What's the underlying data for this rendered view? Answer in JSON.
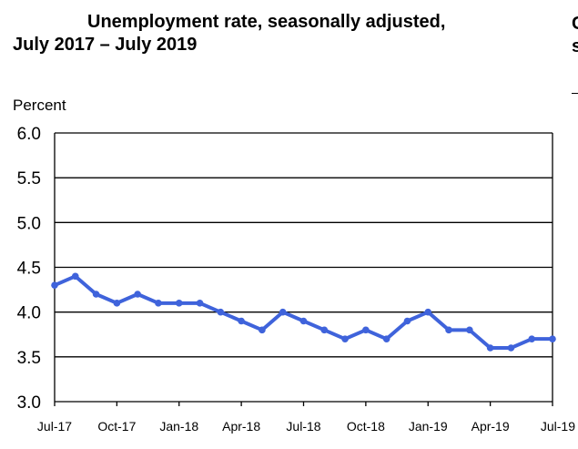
{
  "chart_data": {
    "type": "line",
    "title_line_1": "Unemployment rate, seasonally adjusted,",
    "title_line_2": "July 2017 – July 2019",
    "ylabel": "Percent",
    "xlabel": "",
    "ylim": [
      3.0,
      6.0
    ],
    "yticks": [
      "3.0",
      "3.5",
      "4.0",
      "4.5",
      "5.0",
      "5.5",
      "6.0"
    ],
    "grid": true,
    "legend": "none",
    "x": [
      "Jul-17",
      "Aug-17",
      "Sep-17",
      "Oct-17",
      "Nov-17",
      "Dec-17",
      "Jan-18",
      "Feb-18",
      "Mar-18",
      "Apr-18",
      "May-18",
      "Jun-18",
      "Jul-18",
      "Aug-18",
      "Sep-18",
      "Oct-18",
      "Nov-18",
      "Dec-18",
      "Jan-19",
      "Feb-19",
      "Mar-19",
      "Apr-19",
      "May-19",
      "Jun-19",
      "Jul-19"
    ],
    "xtick_labels": [
      "Jul-17",
      "Oct-17",
      "Jan-18",
      "Apr-18",
      "Jul-18",
      "Oct-18",
      "Jan-19",
      "Apr-19",
      "Jul-19"
    ],
    "series": [
      {
        "values": [
          4.3,
          4.4,
          4.2,
          4.1,
          4.2,
          4.1,
          4.1,
          4.1,
          4.0,
          3.9,
          3.8,
          4.0,
          3.9,
          3.8,
          3.7,
          3.8,
          3.7,
          3.9,
          4.0,
          3.8,
          3.8,
          3.6,
          3.6,
          3.7,
          3.7
        ]
      }
    ],
    "colors": {
      "line": "#3f63db",
      "grid": "#000000"
    },
    "edge_fragment": "C\ns"
  }
}
